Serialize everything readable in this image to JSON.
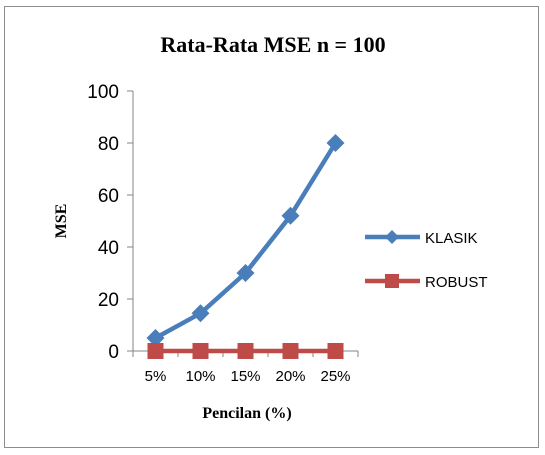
{
  "chart_data": {
    "type": "line",
    "title": "Rata-Rata MSE n = 100",
    "xlabel": "Pencilan (%)",
    "ylabel": "MSE",
    "categories": [
      "5%",
      "10%",
      "15%",
      "20%",
      "25%"
    ],
    "ylim": [
      0,
      100
    ],
    "yticks": [
      "0",
      "20",
      "40",
      "60",
      "80",
      "100"
    ],
    "grid": false,
    "legend_position": "right",
    "series": [
      {
        "name": "KLASIK",
        "values": [
          5,
          14.5,
          30,
          52,
          80
        ],
        "color": "#4a7ebb",
        "marker": "diamond"
      },
      {
        "name": "ROBUST",
        "values": [
          0,
          0,
          0,
          0,
          0
        ],
        "color": "#be4b48",
        "marker": "square"
      }
    ]
  }
}
